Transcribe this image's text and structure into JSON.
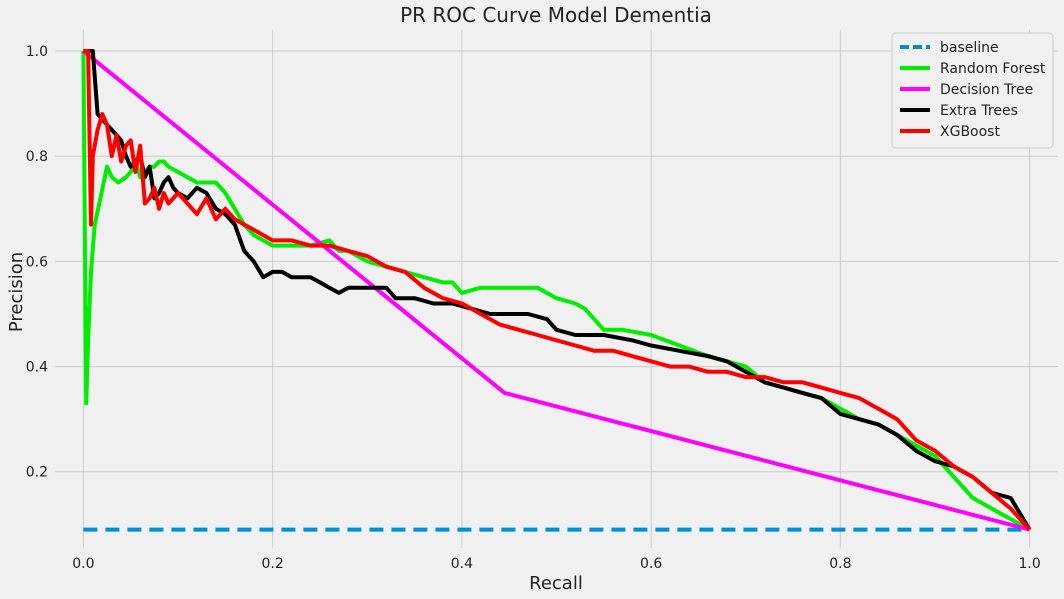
{
  "chart_data": {
    "type": "line",
    "title": "PR ROC Curve Model Dementia",
    "xlabel": "Recall",
    "ylabel": "Precision",
    "xlim": [
      -0.03,
      1.03
    ],
    "ylim": [
      0.055,
      1.04
    ],
    "xticks": [
      0.0,
      0.2,
      0.4,
      0.6,
      0.8,
      1.0
    ],
    "xtick_labels": [
      "0.0",
      "0.2",
      "0.4",
      "0.6",
      "0.8",
      "1.0"
    ],
    "yticks": [
      0.2,
      0.4,
      0.6,
      0.8,
      1.0
    ],
    "ytick_labels": [
      "0.2",
      "0.4",
      "0.6",
      "0.8",
      "1.0"
    ],
    "grid": true,
    "legend_position": "top-right",
    "series": [
      {
        "name": "baseline",
        "color": "#008fd5",
        "dashed": true,
        "x": [
          0.0,
          1.0
        ],
        "y": [
          0.09,
          0.09
        ]
      },
      {
        "name": "Random Forest",
        "color": "#00ee00",
        "x": [
          0.0,
          0.003,
          0.005,
          0.008,
          0.012,
          0.018,
          0.025,
          0.03,
          0.037,
          0.045,
          0.05,
          0.055,
          0.06,
          0.065,
          0.07,
          0.075,
          0.08,
          0.085,
          0.09,
          0.1,
          0.11,
          0.12,
          0.13,
          0.14,
          0.15,
          0.16,
          0.17,
          0.18,
          0.19,
          0.2,
          0.22,
          0.24,
          0.26,
          0.27,
          0.28,
          0.29,
          0.3,
          0.32,
          0.34,
          0.36,
          0.38,
          0.39,
          0.4,
          0.42,
          0.44,
          0.46,
          0.47,
          0.48,
          0.5,
          0.52,
          0.53,
          0.55,
          0.57,
          0.6,
          0.63,
          0.66,
          0.68,
          0.7,
          0.72,
          0.74,
          0.76,
          0.78,
          0.8,
          0.82,
          0.84,
          0.86,
          0.88,
          0.9,
          0.92,
          0.94,
          0.96,
          0.98,
          1.0
        ],
        "y": [
          1.0,
          0.33,
          0.45,
          0.58,
          0.67,
          0.72,
          0.78,
          0.76,
          0.75,
          0.76,
          0.77,
          0.79,
          0.76,
          0.77,
          0.78,
          0.78,
          0.79,
          0.79,
          0.78,
          0.77,
          0.76,
          0.75,
          0.75,
          0.75,
          0.73,
          0.7,
          0.67,
          0.65,
          0.64,
          0.63,
          0.63,
          0.63,
          0.64,
          0.62,
          0.62,
          0.61,
          0.6,
          0.59,
          0.58,
          0.57,
          0.56,
          0.56,
          0.54,
          0.55,
          0.55,
          0.55,
          0.55,
          0.55,
          0.53,
          0.52,
          0.51,
          0.47,
          0.47,
          0.46,
          0.44,
          0.42,
          0.41,
          0.4,
          0.37,
          0.36,
          0.35,
          0.34,
          0.32,
          0.3,
          0.29,
          0.27,
          0.25,
          0.23,
          0.19,
          0.15,
          0.13,
          0.11,
          0.09
        ]
      },
      {
        "name": "Decision Tree",
        "color": "#ff00ff",
        "x": [
          0.0,
          0.445,
          1.0
        ],
        "y": [
          1.0,
          0.35,
          0.09
        ]
      },
      {
        "name": "Extra Trees",
        "color": "#000000",
        "x": [
          0.0,
          0.01,
          0.015,
          0.02,
          0.025,
          0.03,
          0.04,
          0.045,
          0.05,
          0.055,
          0.06,
          0.065,
          0.07,
          0.075,
          0.08,
          0.085,
          0.09,
          0.095,
          0.1,
          0.11,
          0.12,
          0.13,
          0.14,
          0.15,
          0.16,
          0.17,
          0.18,
          0.19,
          0.2,
          0.21,
          0.22,
          0.24,
          0.25,
          0.26,
          0.27,
          0.28,
          0.3,
          0.32,
          0.33,
          0.35,
          0.37,
          0.39,
          0.41,
          0.43,
          0.45,
          0.47,
          0.49,
          0.5,
          0.52,
          0.55,
          0.58,
          0.6,
          0.63,
          0.66,
          0.68,
          0.7,
          0.72,
          0.74,
          0.76,
          0.78,
          0.8,
          0.82,
          0.84,
          0.86,
          0.88,
          0.9,
          0.92,
          0.94,
          0.96,
          0.98,
          1.0
        ],
        "y": [
          1.0,
          1.0,
          0.88,
          0.87,
          0.86,
          0.85,
          0.83,
          0.8,
          0.78,
          0.79,
          0.8,
          0.76,
          0.78,
          0.72,
          0.73,
          0.75,
          0.76,
          0.74,
          0.73,
          0.72,
          0.74,
          0.73,
          0.7,
          0.69,
          0.67,
          0.62,
          0.6,
          0.57,
          0.58,
          0.58,
          0.57,
          0.57,
          0.56,
          0.55,
          0.54,
          0.55,
          0.55,
          0.55,
          0.53,
          0.53,
          0.52,
          0.52,
          0.51,
          0.5,
          0.5,
          0.5,
          0.49,
          0.47,
          0.46,
          0.46,
          0.45,
          0.44,
          0.43,
          0.42,
          0.41,
          0.39,
          0.37,
          0.36,
          0.35,
          0.34,
          0.31,
          0.3,
          0.29,
          0.27,
          0.24,
          0.22,
          0.21,
          0.19,
          0.16,
          0.15,
          0.09
        ]
      },
      {
        "name": "XGBoost",
        "color": "#ff0000",
        "x": [
          0.0,
          0.005,
          0.008,
          0.01,
          0.015,
          0.02,
          0.025,
          0.03,
          0.035,
          0.04,
          0.045,
          0.05,
          0.055,
          0.06,
          0.065,
          0.07,
          0.075,
          0.08,
          0.085,
          0.09,
          0.1,
          0.11,
          0.12,
          0.13,
          0.14,
          0.15,
          0.16,
          0.17,
          0.18,
          0.19,
          0.2,
          0.22,
          0.24,
          0.26,
          0.28,
          0.3,
          0.32,
          0.34,
          0.36,
          0.38,
          0.4,
          0.42,
          0.44,
          0.46,
          0.48,
          0.5,
          0.52,
          0.54,
          0.56,
          0.58,
          0.6,
          0.62,
          0.64,
          0.66,
          0.68,
          0.7,
          0.72,
          0.74,
          0.76,
          0.78,
          0.8,
          0.82,
          0.84,
          0.86,
          0.88,
          0.9,
          0.92,
          0.94,
          0.96,
          0.98,
          1.0
        ],
        "y": [
          1.0,
          1.0,
          0.67,
          0.8,
          0.85,
          0.88,
          0.86,
          0.8,
          0.84,
          0.79,
          0.82,
          0.83,
          0.77,
          0.82,
          0.71,
          0.72,
          0.74,
          0.7,
          0.73,
          0.71,
          0.73,
          0.71,
          0.69,
          0.72,
          0.68,
          0.7,
          0.68,
          0.67,
          0.66,
          0.65,
          0.64,
          0.64,
          0.63,
          0.63,
          0.62,
          0.61,
          0.59,
          0.58,
          0.55,
          0.53,
          0.52,
          0.5,
          0.48,
          0.47,
          0.46,
          0.45,
          0.44,
          0.43,
          0.43,
          0.42,
          0.41,
          0.4,
          0.4,
          0.39,
          0.39,
          0.38,
          0.38,
          0.37,
          0.37,
          0.36,
          0.35,
          0.34,
          0.32,
          0.3,
          0.26,
          0.24,
          0.21,
          0.19,
          0.16,
          0.13,
          0.09
        ]
      }
    ]
  }
}
